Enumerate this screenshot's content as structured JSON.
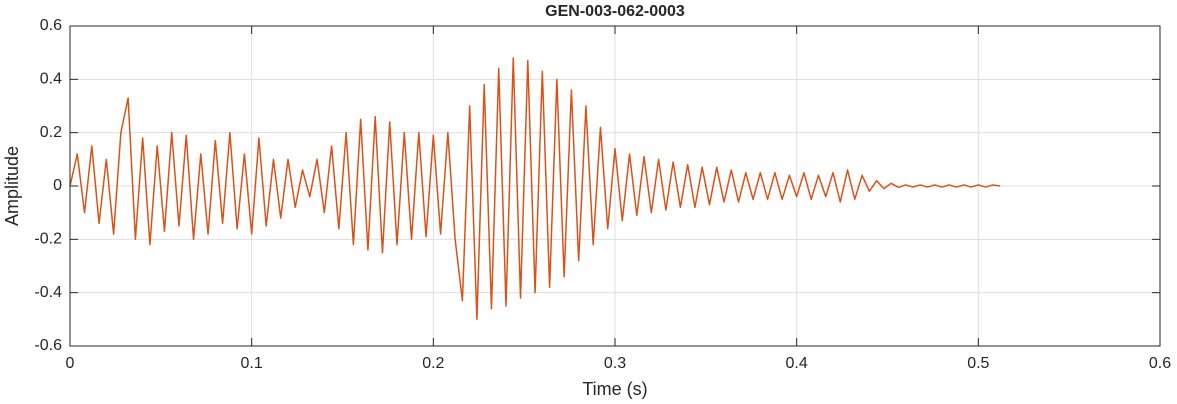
{
  "chart_data": {
    "type": "line",
    "title": "GEN-003-062-0003",
    "xlabel": "Time (s)",
    "ylabel": "Amplitude",
    "color": "#D95319",
    "grid": true,
    "xlim": [
      0,
      0.6
    ],
    "xticks": [
      0,
      0.1,
      0.2,
      0.3,
      0.4,
      0.5,
      0.6
    ],
    "ylim": [
      -0.6,
      0.6
    ],
    "yticks": [
      -0.6,
      -0.4,
      -0.2,
      0,
      0.2,
      0.4,
      0.6
    ],
    "x": [
      0,
      0.004,
      0.008,
      0.012,
      0.016,
      0.02,
      0.024,
      0.028,
      0.032,
      0.036,
      0.04,
      0.044,
      0.048,
      0.052,
      0.056,
      0.06,
      0.064,
      0.068,
      0.072,
      0.076,
      0.08,
      0.084,
      0.088,
      0.092,
      0.096,
      0.1,
      0.104,
      0.108,
      0.112,
      0.116,
      0.12,
      0.124,
      0.128,
      0.132,
      0.136,
      0.14,
      0.144,
      0.148,
      0.152,
      0.156,
      0.16,
      0.164,
      0.168,
      0.172,
      0.176,
      0.18,
      0.184,
      0.188,
      0.192,
      0.196,
      0.2,
      0.204,
      0.208,
      0.212,
      0.216,
      0.22,
      0.224,
      0.228,
      0.232,
      0.236,
      0.24,
      0.244,
      0.248,
      0.252,
      0.256,
      0.26,
      0.264,
      0.268,
      0.272,
      0.276,
      0.28,
      0.284,
      0.288,
      0.292,
      0.296,
      0.3,
      0.304,
      0.308,
      0.312,
      0.316,
      0.32,
      0.324,
      0.328,
      0.332,
      0.336,
      0.34,
      0.344,
      0.348,
      0.352,
      0.356,
      0.36,
      0.364,
      0.368,
      0.372,
      0.376,
      0.38,
      0.384,
      0.388,
      0.392,
      0.396,
      0.4,
      0.404,
      0.408,
      0.412,
      0.416,
      0.42,
      0.424,
      0.428,
      0.432,
      0.436,
      0.44,
      0.444,
      0.448,
      0.452,
      0.456,
      0.46,
      0.464,
      0.468,
      0.472,
      0.476,
      0.48,
      0.484,
      0.488,
      0.492,
      0.496,
      0.5,
      0.504,
      0.508,
      0.512
    ],
    "values": [
      0,
      0.12,
      -0.1,
      0.15,
      -0.14,
      0.1,
      -0.18,
      0.2,
      0.33,
      -0.2,
      0.18,
      -0.22,
      0.15,
      -0.17,
      0.2,
      -0.15,
      0.19,
      -0.2,
      0.12,
      -0.18,
      0.17,
      -0.14,
      0.2,
      -0.16,
      0.12,
      -0.18,
      0.18,
      -0.15,
      0.1,
      -0.12,
      0.1,
      -0.08,
      0.06,
      -0.04,
      0.1,
      -0.1,
      0.15,
      -0.16,
      0.2,
      -0.22,
      0.25,
      -0.24,
      0.26,
      -0.25,
      0.24,
      -0.22,
      0.2,
      -0.2,
      0.2,
      -0.19,
      0.19,
      -0.18,
      0.2,
      -0.2,
      -0.43,
      0.3,
      -0.5,
      0.38,
      -0.46,
      0.44,
      -0.45,
      0.48,
      -0.42,
      0.47,
      -0.4,
      0.43,
      -0.38,
      0.4,
      -0.34,
      0.36,
      -0.28,
      0.3,
      -0.22,
      0.22,
      -0.16,
      0.14,
      -0.13,
      0.12,
      -0.11,
      0.11,
      -0.1,
      0.1,
      -0.09,
      0.09,
      -0.08,
      0.08,
      -0.08,
      0.07,
      -0.07,
      0.07,
      -0.06,
      0.06,
      -0.06,
      0.05,
      -0.05,
      0.05,
      -0.05,
      0.05,
      -0.05,
      0.04,
      -0.04,
      0.05,
      -0.05,
      0.04,
      -0.04,
      0.05,
      -0.06,
      0.06,
      -0.05,
      0.04,
      -0.02,
      0.02,
      -0.01,
      0.01,
      -0.005,
      0.004,
      -0.004,
      0.004,
      -0.004,
      0.004,
      -0.004,
      0.004,
      -0.004,
      0.004,
      -0.004,
      0.004,
      -0.004,
      0.004,
      0
    ]
  }
}
